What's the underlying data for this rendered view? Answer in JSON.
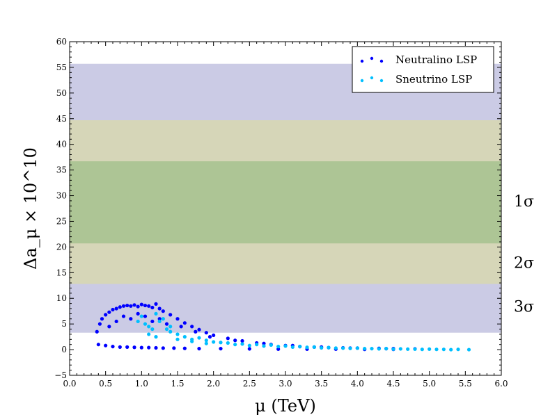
{
  "chart_data": {
    "type": "scatter",
    "xlabel": "μ (TeV)",
    "ylabel": "Δa_μ × 10^10",
    "xlim": [
      0,
      6
    ],
    "ylim": [
      -5,
      60
    ],
    "xticks": [
      "0.0",
      "0.5",
      "1.0",
      "1.5",
      "2.0",
      "2.5",
      "3.0",
      "3.5",
      "4.0",
      "4.5",
      "5.0",
      "5.5",
      "6.0"
    ],
    "yticks": [
      "−5",
      "0",
      "5",
      "10",
      "15",
      "20",
      "25",
      "30",
      "35",
      "40",
      "45",
      "50",
      "55",
      "60"
    ],
    "grid": false,
    "legend_position": "top-right",
    "bands": [
      {
        "sigma": "3σ",
        "y0": 3.3,
        "y1": 55.7,
        "color": "#cbcbe5"
      },
      {
        "sigma": "2σ",
        "y0": 12.8,
        "y1": 44.7,
        "color": "#d6d6b8"
      },
      {
        "sigma": "1σ",
        "y0": 20.7,
        "y1": 36.7,
        "color": "#adc595"
      }
    ],
    "sigma_labels": [
      {
        "text": "1σ",
        "y": 29
      },
      {
        "text": "2σ",
        "y": 17
      },
      {
        "text": "3σ",
        "y": 8.5
      }
    ],
    "series": [
      {
        "name": "Neutralino LSP",
        "color": "#0000ff",
        "x": [
          0.38,
          0.42,
          0.45,
          0.5,
          0.55,
          0.6,
          0.65,
          0.7,
          0.75,
          0.8,
          0.85,
          0.9,
          0.95,
          1.0,
          1.05,
          1.1,
          1.15,
          1.2,
          1.25,
          1.3,
          1.4,
          1.5,
          1.6,
          1.7,
          1.8,
          1.9,
          2.0,
          2.2,
          2.4,
          2.6,
          2.8,
          3.0,
          3.2,
          3.4,
          3.6,
          3.8,
          4.0,
          4.3,
          4.5,
          4.8,
          0.4,
          0.5,
          0.6,
          0.7,
          0.8,
          0.9,
          1.0,
          1.1,
          1.2,
          1.3,
          1.45,
          1.6,
          1.8,
          2.1,
          2.5,
          2.9,
          3.3,
          3.7,
          4.1,
          4.5,
          0.55,
          0.65,
          0.75,
          0.85,
          0.95,
          1.05,
          1.15,
          1.25,
          1.35,
          1.55,
          1.75,
          1.95,
          2.3,
          2.7,
          3.1,
          3.5,
          3.9,
          4.4
        ],
        "y": [
          3.5,
          5.0,
          6.0,
          6.8,
          7.3,
          7.8,
          8.0,
          8.3,
          8.5,
          8.6,
          8.5,
          8.7,
          8.4,
          8.8,
          8.6,
          8.5,
          8.2,
          8.9,
          8.0,
          7.5,
          6.8,
          6.0,
          5.2,
          4.5,
          3.9,
          3.3,
          2.8,
          2.2,
          1.7,
          1.3,
          1.0,
          0.8,
          0.6,
          0.5,
          0.4,
          0.35,
          0.3,
          0.25,
          0.2,
          0.15,
          1.0,
          0.8,
          0.6,
          0.5,
          0.5,
          0.45,
          0.4,
          0.4,
          0.35,
          0.3,
          0.3,
          0.25,
          0.2,
          0.2,
          0.15,
          0.1,
          0.1,
          0.1,
          0.05,
          0.05,
          4.5,
          5.5,
          6.5,
          6.0,
          7.0,
          6.5,
          5.5,
          6.0,
          5.0,
          4.5,
          3.5,
          2.5,
          1.8,
          1.2,
          0.8,
          0.5,
          0.3,
          0.2
        ]
      },
      {
        "name": "Sneutrino LSP",
        "color": "#00bfff",
        "x": [
          0.95,
          1.0,
          1.05,
          1.1,
          1.15,
          1.2,
          1.25,
          1.3,
          1.35,
          1.4,
          1.5,
          1.6,
          1.7,
          1.8,
          1.9,
          2.0,
          2.2,
          2.4,
          2.6,
          2.8,
          3.0,
          3.2,
          3.4,
          3.6,
          3.8,
          4.0,
          4.2,
          4.4,
          4.6,
          4.8,
          5.0,
          5.2,
          5.4,
          5.55,
          1.1,
          1.2,
          1.4,
          1.5,
          1.7,
          1.9,
          2.1,
          2.3,
          2.5,
          2.7,
          2.9,
          3.1,
          3.3,
          3.5,
          3.7,
          3.9,
          4.1,
          4.3,
          4.5,
          4.7,
          4.9,
          5.1,
          5.3
        ],
        "y": [
          5.5,
          6.5,
          5.0,
          4.5,
          4.0,
          7.0,
          5.5,
          6.0,
          4.0,
          3.5,
          3.0,
          2.5,
          2.0,
          2.3,
          1.8,
          1.5,
          1.3,
          1.1,
          1.0,
          0.9,
          0.7,
          0.6,
          0.5,
          0.4,
          0.3,
          0.3,
          0.2,
          0.2,
          0.15,
          0.1,
          0.1,
          0.05,
          0.05,
          0.0,
          3.0,
          2.5,
          4.5,
          2.0,
          1.6,
          1.2,
          1.4,
          1.0,
          0.8,
          0.7,
          0.6,
          0.5,
          0.45,
          0.35,
          0.3,
          0.25,
          0.2,
          0.15,
          0.1,
          0.1,
          0.05,
          0.05,
          0.0
        ]
      }
    ]
  }
}
